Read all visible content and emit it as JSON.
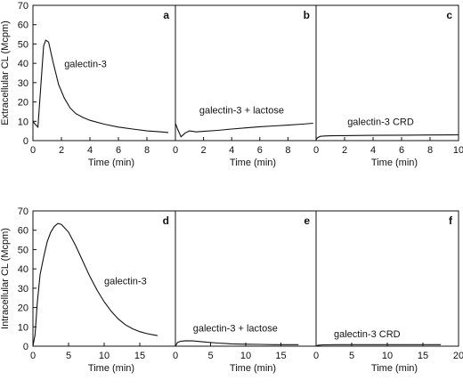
{
  "chart_data": [
    {
      "type": "line",
      "panel": "a",
      "ylabel": "Extracellular CL (Mcpm)",
      "xlabel": "Time (min)",
      "xlim": [
        0,
        10
      ],
      "ylim": [
        0,
        70
      ],
      "xticks": [
        0,
        2,
        4,
        6,
        8
      ],
      "yticks": [
        0,
        10,
        20,
        30,
        40,
        50,
        60,
        70
      ],
      "annotation": "galectin-3",
      "series": [
        {
          "x": [
            0,
            0.15,
            0.35,
            0.55,
            0.75,
            0.9,
            1.1,
            1.4,
            1.8,
            2.2,
            2.6,
            3.0,
            3.5,
            4.0,
            5.0,
            6.0,
            7.0,
            8.0,
            9.0,
            9.5
          ],
          "y": [
            10,
            8.5,
            7.0,
            28,
            49,
            52,
            51,
            41,
            29,
            22,
            17,
            14,
            12,
            10.5,
            8.5,
            7,
            6,
            5,
            4.5,
            4.2
          ]
        }
      ]
    },
    {
      "type": "line",
      "panel": "b",
      "xlabel": "Time (min)",
      "xlim": [
        0,
        10
      ],
      "ylim": [
        0,
        70
      ],
      "xticks": [
        0,
        2,
        4,
        6,
        8
      ],
      "annotation": "galectin-3 + lactose",
      "series": [
        {
          "x": [
            0,
            0.15,
            0.4,
            0.7,
            1,
            1.5,
            2,
            3,
            4,
            5,
            6,
            7,
            8,
            9,
            9.8
          ],
          "y": [
            9,
            6,
            2,
            4,
            5,
            4.5,
            4.8,
            5.3,
            6,
            6.6,
            7.2,
            7.6,
            8,
            8.5,
            9
          ]
        }
      ]
    },
    {
      "type": "line",
      "panel": "c",
      "xlabel": "Time (min)",
      "xlim": [
        0,
        10
      ],
      "ylim": [
        0,
        70
      ],
      "xticks": [
        0,
        2,
        4,
        6,
        8,
        10
      ],
      "annotation": "galectin-3 CRD",
      "series": [
        {
          "x": [
            0,
            0.1,
            0.3,
            0.6,
            1,
            2,
            4,
            6,
            8,
            10
          ],
          "y": [
            0.5,
            1.5,
            2.2,
            2.4,
            2.5,
            2.6,
            2.7,
            2.8,
            2.9,
            3
          ]
        }
      ]
    },
    {
      "type": "line",
      "panel": "d",
      "ylabel": "Intracellular CL (Mcpm)",
      "xlabel": "Time (min)",
      "xlim": [
        0,
        20
      ],
      "ylim": [
        0,
        70
      ],
      "xticks": [
        0,
        5,
        10,
        15
      ],
      "yticks": [
        0,
        10,
        20,
        30,
        40,
        50,
        60,
        70
      ],
      "annotation": "galectin-3",
      "series": [
        {
          "x": [
            0,
            0.3,
            0.6,
            1,
            1.5,
            2,
            2.5,
            3,
            3.5,
            4,
            5,
            6,
            7,
            8,
            9,
            10,
            11,
            12,
            13,
            14,
            15,
            16,
            17,
            17.5
          ],
          "y": [
            0,
            6,
            22,
            37,
            46,
            54,
            59,
            62,
            63.5,
            63,
            59,
            52,
            44,
            36,
            29,
            23,
            18,
            14,
            11,
            9,
            7.5,
            6.5,
            5.8,
            5.5
          ]
        }
      ]
    },
    {
      "type": "line",
      "panel": "e",
      "xlabel": "Time (min)",
      "xlim": [
        0,
        20
      ],
      "ylim": [
        0,
        70
      ],
      "xticks": [
        0,
        5,
        10,
        15
      ],
      "annotation": "galectin-3 + lactose",
      "series": [
        {
          "x": [
            0,
            0.3,
            0.8,
            1.5,
            2.5,
            4,
            6,
            8,
            10,
            12,
            14,
            16,
            17.5
          ],
          "y": [
            0,
            2,
            2.6,
            2.8,
            2.7,
            2.2,
            1.6,
            1.2,
            1.0,
            0.9,
            0.8,
            0.8,
            0.8
          ]
        }
      ]
    },
    {
      "type": "line",
      "panel": "f",
      "xlabel": "Time (min)",
      "xlim": [
        0,
        20
      ],
      "ylim": [
        0,
        70
      ],
      "xticks": [
        0,
        5,
        10,
        15,
        20
      ],
      "annotation": "galectin-3 CRD",
      "series": [
        {
          "x": [
            0,
            0.3,
            1,
            3,
            6,
            9,
            12,
            15,
            17.5
          ],
          "y": [
            0.2,
            0.5,
            0.7,
            0.8,
            0.8,
            0.8,
            0.8,
            0.8,
            0.8
          ]
        }
      ]
    }
  ]
}
